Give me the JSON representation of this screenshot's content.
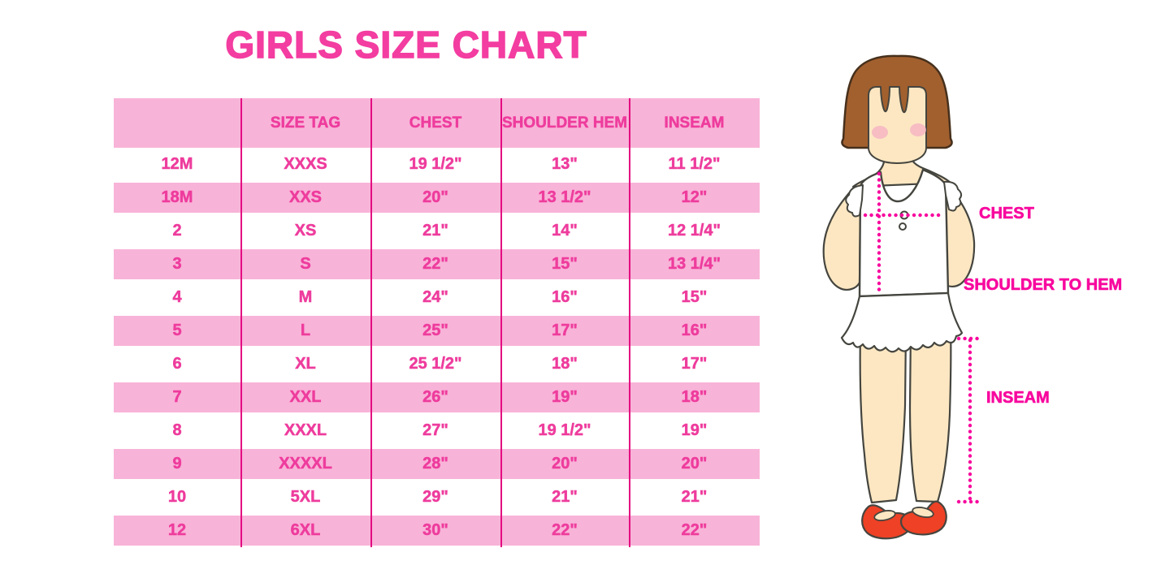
{
  "title": "GIRLS SIZE CHART",
  "chart_data": {
    "type": "table",
    "title": "GIRLS SIZE CHART",
    "columns": [
      "",
      "SIZE TAG",
      "CHEST",
      "SHOULDER HEM",
      "INSEAM"
    ],
    "rows": [
      [
        "12M",
        "XXXS",
        "19 1/2\"",
        "13\"",
        "11 1/2\""
      ],
      [
        "18M",
        "XXS",
        "20\"",
        "13 1/2\"",
        "12\""
      ],
      [
        "2",
        "XS",
        "21\"",
        "14\"",
        "12 1/4\""
      ],
      [
        "3",
        "S",
        "22\"",
        "15\"",
        "13 1/4\""
      ],
      [
        "4",
        "M",
        "24\"",
        "16\"",
        "15\""
      ],
      [
        "5",
        "L",
        "25\"",
        "17\"",
        "16\""
      ],
      [
        "6",
        "XL",
        "25 1/2\"",
        "18\"",
        "17\""
      ],
      [
        "7",
        "XXL",
        "26\"",
        "19\"",
        "18\""
      ],
      [
        "8",
        "XXXL",
        "27\"",
        "19 1/2\"",
        "19\""
      ],
      [
        "9",
        "XXXXL",
        "28\"",
        "20\"",
        "20\""
      ],
      [
        "10",
        "5XL",
        "29\"",
        "21\"",
        "21\""
      ],
      [
        "12",
        "6XL",
        "30\"",
        "22\"",
        "22\""
      ]
    ],
    "layout": {
      "striped_rows": true,
      "stripe_color": "#f8b3d8",
      "grid_lines": "vertical-only"
    }
  },
  "diagram": {
    "chest_label": "CHEST",
    "shoulder_to_hem_label": "SHOULDER TO HEM",
    "inseam_label": "INSEAM"
  },
  "colors": {
    "title_pink": "#f33da1",
    "text_pink": "#ee3c9d",
    "band_pink": "#f8b3d8",
    "line_magenta": "#e40b81",
    "label_pink": "#f8089e",
    "hair_brown": "#a2602f",
    "hair_outline": "#46301c",
    "skin": "#fce7c2",
    "blush": "#f5b3c3",
    "outline_dark": "#45453f",
    "shoe_red": "#ee4125"
  }
}
